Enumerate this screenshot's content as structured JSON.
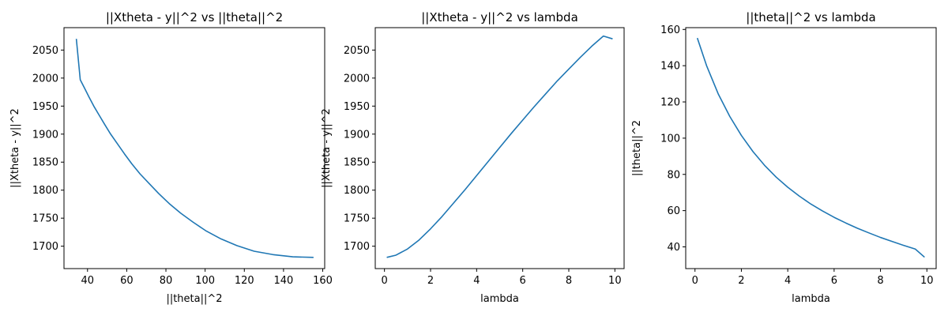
{
  "colors": {
    "line": "#1f77b4",
    "axes": "#000000"
  },
  "chart_data": [
    {
      "type": "line",
      "title": "||Xtheta - y||^2 vs ||theta||^2",
      "xlabel": "||theta||^2",
      "ylabel": "||Xtheta - y||^2",
      "xlim": [
        28,
        161
      ],
      "ylim": [
        1660,
        2090
      ],
      "xticks": [
        40,
        60,
        80,
        100,
        120,
        140,
        160
      ],
      "yticks": [
        1700,
        1750,
        1800,
        1850,
        1900,
        1950,
        2000,
        2050
      ],
      "grid": false,
      "series": [
        {
          "x": [
            155.3,
            144.7,
            134.6,
            125.0,
            116.2,
            108.1,
            100.6,
            93.8,
            87.5,
            81.7,
            76.3,
            71.4,
            66.8,
            62.6,
            58.8,
            55.2,
            51.8,
            48.8,
            45.9,
            43.2,
            40.8,
            38.5,
            36.3,
            34.3
          ],
          "y": [
            1680,
            1681,
            1685,
            1691,
            1701,
            1713,
            1727,
            1743,
            1759,
            1776,
            1794,
            1812,
            1829,
            1847,
            1865,
            1883,
            1900,
            1917,
            1934,
            1950,
            1966,
            1982,
            1997,
            2070
          ]
        }
      ]
    },
    {
      "type": "line",
      "title": "||Xtheta - y||^2 vs lambda",
      "xlabel": "lambda",
      "ylabel": "||Xtheta - y||^2",
      "xlim": [
        -0.4,
        10.4
      ],
      "ylim": [
        1660,
        2090
      ],
      "xticks": [
        0,
        2,
        4,
        6,
        8,
        10
      ],
      "yticks": [
        1700,
        1750,
        1800,
        1850,
        1900,
        1950,
        2000,
        2050
      ],
      "grid": false,
      "series": [
        {
          "x": [
            0.1,
            0.5,
            1.0,
            1.5,
            2.0,
            2.5,
            3.0,
            3.5,
            4.0,
            4.5,
            5.0,
            5.5,
            6.0,
            6.5,
            7.0,
            7.5,
            8.0,
            8.5,
            9.0,
            9.5,
            9.9
          ],
          "y": [
            1680,
            1684,
            1695,
            1711,
            1731,
            1753,
            1777,
            1801,
            1826,
            1851,
            1876,
            1901,
            1925,
            1949,
            1972,
            1995,
            2016,
            2037,
            2057,
            2075,
            2070
          ]
        }
      ]
    },
    {
      "type": "line",
      "title": "||theta||^2 vs lambda",
      "xlabel": "lambda",
      "ylabel": "||theta||^2",
      "xlim": [
        -0.4,
        10.4
      ],
      "ylim": [
        28,
        161
      ],
      "xticks": [
        0,
        2,
        4,
        6,
        8,
        10
      ],
      "yticks": [
        40,
        60,
        80,
        100,
        120,
        140,
        160
      ],
      "grid": false,
      "series": [
        {
          "x": [
            0.1,
            0.5,
            1.0,
            1.5,
            2.0,
            2.5,
            3.0,
            3.5,
            4.0,
            4.5,
            5.0,
            5.5,
            6.0,
            6.5,
            7.0,
            7.5,
            8.0,
            8.5,
            9.0,
            9.5,
            9.9
          ],
          "y": [
            155.3,
            140.0,
            124.5,
            112.0,
            101.5,
            92.6,
            85.0,
            78.5,
            72.9,
            68.0,
            63.6,
            59.8,
            56.3,
            53.2,
            50.3,
            47.7,
            45.2,
            43.0,
            40.8,
            38.8,
            34.3
          ]
        }
      ]
    }
  ]
}
